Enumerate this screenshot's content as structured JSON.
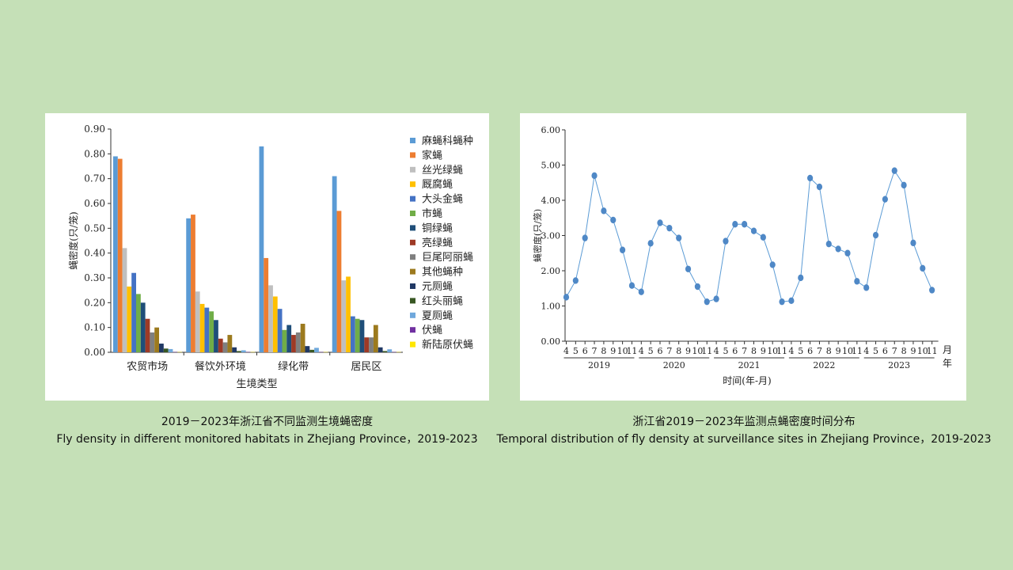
{
  "captions": {
    "left_zh": "2019－2023年浙江省不同监测生境蝇密度",
    "left_en": "Fly density in different monitored habitats in Zhejiang Province，2019-2023",
    "right_zh": "浙江省2019－2023年监测点蝇密度时间分布",
    "right_en": "Temporal distribution of fly density at surveillance sites in Zhejiang Province，2019-2023"
  },
  "colors": {
    "background": "#c5e0b7",
    "line": "#5b9bd5",
    "point": "#4f88c6"
  },
  "chart_data": [
    {
      "type": "bar",
      "title": "",
      "xlabel": "生境类型",
      "ylabel": "蝇密度(只/笼)",
      "ylim": [
        0,
        0.9
      ],
      "yticks": [
        "0.00",
        "0.10",
        "0.20",
        "0.30",
        "0.40",
        "0.50",
        "0.60",
        "0.70",
        "0.80",
        "0.90"
      ],
      "categories": [
        "农贸市场",
        "餐饮外环境",
        "绿化带",
        "居民区"
      ],
      "legend_position": "right",
      "series": [
        {
          "name": "麻蝇科蝇种",
          "color": "#5b9bd5",
          "values": [
            0.79,
            0.54,
            0.83,
            0.71
          ]
        },
        {
          "name": "家蝇",
          "color": "#ed7d31",
          "values": [
            0.78,
            0.555,
            0.38,
            0.57
          ]
        },
        {
          "name": "丝光绿蝇",
          "color": "#bfbfbf",
          "values": [
            0.42,
            0.245,
            0.27,
            0.29
          ]
        },
        {
          "name": "厩腐蝇",
          "color": "#ffc000",
          "values": [
            0.265,
            0.195,
            0.225,
            0.305
          ]
        },
        {
          "name": "大头金蝇",
          "color": "#4472c4",
          "values": [
            0.32,
            0.18,
            0.175,
            0.145
          ]
        },
        {
          "name": "市蝇",
          "color": "#70ad47",
          "values": [
            0.235,
            0.165,
            0.09,
            0.135
          ]
        },
        {
          "name": "铜绿蝇",
          "color": "#1f4e79",
          "values": [
            0.2,
            0.13,
            0.11,
            0.13
          ]
        },
        {
          "name": "亮绿蝇",
          "color": "#9e3a26",
          "values": [
            0.135,
            0.055,
            0.07,
            0.06
          ]
        },
        {
          "name": "巨尾阿丽蝇",
          "color": "#7f7f7f",
          "values": [
            0.08,
            0.04,
            0.08,
            0.06
          ]
        },
        {
          "name": "其他蝇种",
          "color": "#9c7a1e",
          "values": [
            0.1,
            0.07,
            0.115,
            0.11
          ]
        },
        {
          "name": "元厕蝇",
          "color": "#203864",
          "values": [
            0.035,
            0.02,
            0.025,
            0.02
          ]
        },
        {
          "name": "红头丽蝇",
          "color": "#385723",
          "values": [
            0.015,
            0.005,
            0.01,
            0.005
          ]
        },
        {
          "name": "夏厕蝇",
          "color": "#6fa8dc",
          "values": [
            0.013,
            0.008,
            0.018,
            0.012
          ]
        },
        {
          "name": "伏蝇",
          "color": "#7030a0",
          "values": [
            0.001,
            0.001,
            0.001,
            0.001
          ]
        },
        {
          "name": "新陆原伏蝇",
          "color": "#ffe600",
          "values": [
            0.001,
            0.001,
            0.001,
            0.001
          ]
        }
      ]
    },
    {
      "type": "line",
      "title": "",
      "xlabel": "时间(年-月)",
      "ylabel": "蝇密度(只/笼)",
      "ylim": [
        0,
        6
      ],
      "yticks": [
        "0.00",
        "1.00",
        "2.00",
        "3.00",
        "4.00",
        "5.00",
        "6.00"
      ],
      "month_unit": "月",
      "year_unit": "年",
      "months": [
        "4",
        "5",
        "6",
        "7",
        "8",
        "9",
        "10",
        "11"
      ],
      "years": [
        "2019",
        "2020",
        "2021",
        "2022",
        "2023"
      ],
      "series": [
        {
          "name": "蝇密度",
          "values": [
            1.25,
            1.72,
            2.93,
            4.7,
            3.7,
            3.44,
            2.59,
            1.58,
            1.4,
            2.78,
            3.36,
            3.21,
            2.93,
            2.05,
            1.55,
            1.12,
            1.2,
            2.84,
            3.32,
            3.32,
            3.13,
            2.95,
            2.17,
            1.12,
            1.15,
            1.8,
            4.63,
            4.38,
            2.76,
            2.62,
            2.5,
            1.7,
            1.52,
            3.01,
            4.03,
            4.84,
            4.43,
            2.79,
            2.07,
            1.45
          ]
        }
      ]
    }
  ]
}
